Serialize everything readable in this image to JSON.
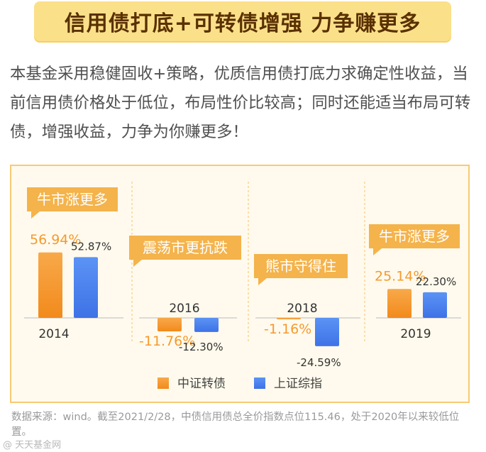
{
  "banner": {
    "title": "信用债打底+可转债增强  力争赚更多"
  },
  "intro": {
    "text": "本基金采用稳健固收+策略，优质信用债打底力求确定性收益，当前信用债价格处于低位，布局性价比较高；同时还能适当布局可转债，增强收益，力争为你赚更多！"
  },
  "chart_data": {
    "type": "bar",
    "categories": [
      "2014",
      "2016",
      "2018",
      "2019"
    ],
    "series": [
      {
        "name": "中证转债",
        "values": [
          56.94,
          -11.76,
          -1.16,
          25.14
        ]
      },
      {
        "name": "上证综指",
        "values": [
          52.87,
          -12.3,
          -24.59,
          22.3
        ]
      }
    ],
    "value_labels": [
      [
        "56.94%",
        "-11.76%",
        "-1.16%",
        "25.14%"
      ],
      [
        "52.87%",
        "-12.30%",
        "-24.59%",
        "22.30%"
      ]
    ],
    "annotations": [
      "牛市涨更多",
      "震荡市更抗跌",
      "熊市守得住",
      "牛市涨更多"
    ],
    "legend_position": "bottom",
    "grid": false,
    "colors": {
      "series_0": "#f59a2e",
      "series_1": "#4f86ee",
      "tag": "#f4b34b"
    }
  },
  "footnote": {
    "text": "数据来源：wind。截至2021/2/28，中债信用债总全价指数点位115.46，处于2020年以来较低位置。"
  },
  "watermark": {
    "text": "@ 天天基金网"
  }
}
